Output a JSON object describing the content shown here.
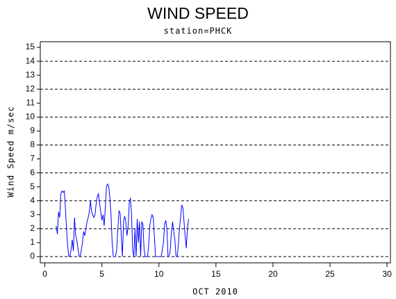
{
  "chart_data": {
    "type": "line",
    "title": "WIND SPEED",
    "subtitle": "station=PHCK",
    "x_label": "OCT 2010",
    "y_label": "Wind Speed m/sec",
    "color": "#0000ff",
    "x": [
      1.0,
      1.1,
      1.2,
      1.3,
      1.4,
      1.5,
      1.6,
      1.7,
      1.8,
      1.9,
      2.0,
      2.1,
      2.2,
      2.3,
      2.4,
      2.5,
      2.6,
      2.7,
      2.8,
      2.9,
      3.0,
      3.1,
      3.2,
      3.3,
      3.4,
      3.5,
      3.6,
      3.7,
      3.8,
      3.9,
      4.0,
      4.1,
      4.2,
      4.3,
      4.4,
      4.5,
      4.6,
      4.7,
      4.8,
      4.9,
      5.0,
      5.1,
      5.2,
      5.3,
      5.4,
      5.5,
      5.6,
      5.7,
      5.8,
      5.9,
      6.0,
      6.1,
      6.2,
      6.3,
      6.4,
      6.5,
      6.6,
      6.7,
      6.8,
      6.9,
      7.0,
      7.1,
      7.2,
      7.3,
      7.4,
      7.5,
      7.6,
      7.7,
      7.8,
      7.9,
      8.0,
      8.1,
      8.2,
      8.3,
      8.4,
      8.5,
      8.6,
      8.7,
      8.8,
      8.9,
      9.0,
      9.1,
      9.2,
      9.3,
      9.4,
      9.5,
      9.6,
      9.7,
      9.8,
      9.9,
      10.0,
      10.2,
      10.4,
      10.5,
      10.6,
      10.7,
      10.8,
      10.9,
      11.0,
      11.1,
      11.2,
      11.3,
      11.4,
      11.5,
      11.6,
      11.7,
      11.8,
      11.9,
      12.0,
      12.1,
      12.2,
      12.3,
      12.4,
      12.5,
      12.6
    ],
    "values": [
      2.2,
      1.6,
      3.2,
      2.8,
      4.5,
      4.7,
      4.6,
      4.7,
      3.5,
      2.0,
      0.8,
      0,
      0,
      0.5,
      1.2,
      0.4,
      2.8,
      1.5,
      1.2,
      0.6,
      0,
      0,
      0.5,
      1.0,
      1.8,
      1.5,
      2.0,
      2.5,
      2.8,
      3.2,
      4.0,
      3.2,
      3.0,
      2.8,
      3.0,
      3.8,
      4.3,
      4.5,
      3.8,
      3.2,
      2.6,
      3.0,
      2.2,
      3.5,
      5.0,
      5.2,
      5.0,
      4.2,
      3.0,
      1.0,
      0,
      0,
      0,
      0.5,
      2.0,
      3.3,
      3.1,
      1.5,
      0,
      2.5,
      2.9,
      2.5,
      1.5,
      2.2,
      3.8,
      4.2,
      3.0,
      0.5,
      0,
      2.0,
      0,
      2.7,
      1.0,
      2.5,
      0,
      2.5,
      2.3,
      0.5,
      0,
      0,
      0,
      0.8,
      2.2,
      2.7,
      3.0,
      2.8,
      1.5,
      0,
      0,
      0,
      0,
      0,
      1.0,
      2.3,
      2.6,
      2.0,
      0,
      0,
      0.5,
      1.8,
      2.5,
      1.8,
      1.2,
      0,
      0,
      0.8,
      2.0,
      2.8,
      3.7,
      3.5,
      2.5,
      1.5,
      0.6,
      2.0,
      2.7
    ],
    "xlim": [
      -0.4,
      30.3
    ],
    "ylim": [
      -0.45,
      15.4
    ],
    "xticks": [
      0,
      5,
      10,
      15,
      20,
      25,
      30
    ],
    "yticks": [
      0,
      1,
      2,
      3,
      4,
      5,
      6,
      7,
      8,
      9,
      10,
      11,
      12,
      13,
      14,
      15
    ],
    "grid_values": [
      0,
      2,
      4,
      6,
      8,
      10,
      12,
      14
    ]
  }
}
